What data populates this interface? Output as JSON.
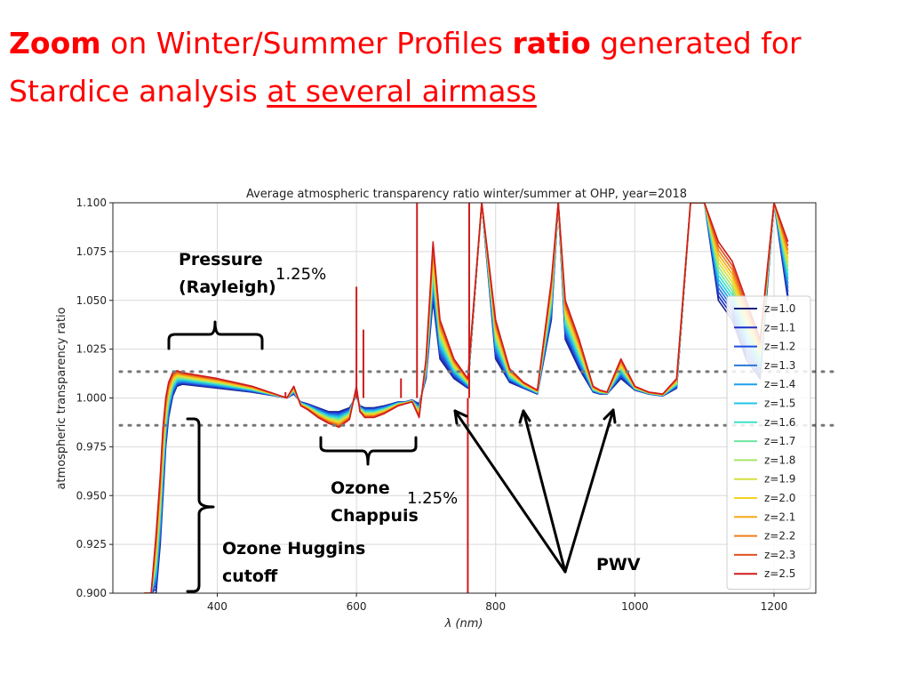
{
  "slide": {
    "title_part1": "Zoom",
    "title_part2": " on Winter/Summer Profiles ",
    "title_part3": "ratio",
    "title_part4": " generated for",
    "title_part5": "Stardice analysis ",
    "title_part6": "at several airmass"
  },
  "annotations": {
    "pressure_line1": "Pressure",
    "pressure_line2": "(Rayleigh)",
    "pct_top": "1.25%",
    "ozone_chappuis_line1": "Ozone",
    "ozone_chappuis_line2": "Chappuis",
    "pct_mid": "1.25%",
    "ozone_huggins_line1": "Ozone Huggins",
    "ozone_huggins_line2": "cutoff",
    "pwv": "PWV"
  },
  "chart_data": {
    "type": "line",
    "title": "Average atmospheric transparency ratio winter/summer at OHP, year=2018",
    "xlabel": "λ (nm)",
    "ylabel": "atmospheric transparency ratio",
    "xlim": [
      250,
      1260
    ],
    "ylim": [
      0.9,
      1.1
    ],
    "xticks": [
      400,
      600,
      800,
      1000,
      1200
    ],
    "yticks": [
      0.9,
      0.925,
      0.95,
      0.975,
      1.0,
      1.025,
      1.05,
      1.075,
      1.1
    ],
    "ytick_labels": [
      "0.900",
      "0.925",
      "0.950",
      "0.975",
      "1.000",
      "1.025",
      "1.050",
      "1.075",
      "1.100"
    ],
    "grid": true,
    "legend_position": "right",
    "reference_lines": [
      1.0135,
      0.986
    ],
    "series": [
      {
        "name": "z=1.0",
        "color": "#1a237e"
      },
      {
        "name": "z=1.1",
        "color": "#1c2fc9"
      },
      {
        "name": "z=1.2",
        "color": "#1f4fe0"
      },
      {
        "name": "z=1.3",
        "color": "#2a78d8"
      },
      {
        "name": "z=1.4",
        "color": "#1fa0e8"
      },
      {
        "name": "z=1.5",
        "color": "#22c4e6"
      },
      {
        "name": "z=1.6",
        "color": "#3ee0c8"
      },
      {
        "name": "z=1.7",
        "color": "#6fe6a0"
      },
      {
        "name": "z=1.8",
        "color": "#a8e46a"
      },
      {
        "name": "z=1.9",
        "color": "#d6e040"
      },
      {
        "name": "z=2.0",
        "color": "#f5d21e"
      },
      {
        "name": "z=2.1",
        "color": "#f5a81a"
      },
      {
        "name": "z=2.2",
        "color": "#f07d1a"
      },
      {
        "name": "z=2.3",
        "color": "#e05020"
      },
      {
        "name": "z=2.5",
        "color": "#d01c1c"
      }
    ],
    "profile_low_z": {
      "x": [
        295,
        305,
        312,
        318,
        322,
        326,
        330,
        336,
        342,
        350,
        400,
        450,
        500,
        510,
        520,
        530,
        545,
        560,
        575,
        590,
        600,
        605,
        612,
        625,
        640,
        650,
        660,
        670,
        680,
        690,
        700,
        710,
        720,
        740,
        760,
        780,
        800,
        820,
        840,
        860,
        880,
        890,
        900,
        920,
        940,
        950,
        960,
        980,
        1000,
        1020,
        1040,
        1060,
        1080,
        1100,
        1120,
        1140,
        1160,
        1180,
        1200,
        1220
      ],
      "y": [
        0.9,
        0.9,
        0.9,
        0.925,
        0.95,
        0.975,
        0.99,
        1.001,
        1.006,
        1.007,
        1.005,
        1.003,
        1.0,
        1.002,
        0.998,
        0.997,
        0.995,
        0.993,
        0.993,
        0.995,
        1.001,
        0.996,
        0.995,
        0.995,
        0.996,
        0.997,
        0.998,
        0.998,
        0.999,
        0.997,
        1.01,
        1.05,
        1.02,
        1.01,
        1.005,
        1.1,
        1.02,
        1.008,
        1.005,
        1.002,
        1.04,
        1.1,
        1.03,
        1.015,
        1.003,
        1.002,
        1.002,
        1.01,
        1.004,
        1.002,
        1.001,
        1.005,
        1.1,
        1.1,
        1.05,
        1.04,
        1.02,
        1.01,
        1.1,
        1.05
      ]
    },
    "profile_high_z": {
      "x": [
        295,
        305,
        312,
        318,
        322,
        326,
        330,
        336,
        342,
        350,
        400,
        450,
        500,
        510,
        520,
        530,
        545,
        560,
        575,
        590,
        600,
        605,
        612,
        625,
        640,
        650,
        660,
        670,
        680,
        690,
        700,
        710,
        720,
        740,
        760,
        780,
        800,
        820,
        840,
        860,
        880,
        890,
        900,
        920,
        940,
        950,
        960,
        980,
        1000,
        1020,
        1040,
        1060,
        1080,
        1100,
        1120,
        1140,
        1160,
        1180,
        1200,
        1220
      ],
      "y": [
        0.9,
        0.9,
        0.93,
        0.96,
        0.985,
        1.0,
        1.008,
        1.013,
        1.014,
        1.013,
        1.01,
        1.006,
        1.0,
        1.006,
        0.996,
        0.994,
        0.99,
        0.987,
        0.985,
        0.989,
        1.006,
        0.993,
        0.99,
        0.99,
        0.992,
        0.994,
        0.996,
        0.997,
        0.998,
        0.99,
        1.02,
        1.08,
        1.04,
        1.02,
        1.01,
        1.1,
        1.04,
        1.015,
        1.008,
        1.004,
        1.06,
        1.1,
        1.05,
        1.03,
        1.006,
        1.004,
        1.003,
        1.02,
        1.006,
        1.003,
        1.002,
        1.01,
        1.1,
        1.1,
        1.08,
        1.07,
        1.05,
        1.03,
        1.1,
        1.08
      ]
    },
    "spikes": [
      {
        "x": 498,
        "y": 1.003
      },
      {
        "x": 600,
        "y": 1.057
      },
      {
        "x": 610,
        "y": 1.035
      },
      {
        "x": 664,
        "y": 1.01
      },
      {
        "x": 687,
        "y": 1.1
      },
      {
        "x": 760,
        "y": 0.9
      },
      {
        "x": 762,
        "y": 1.1
      }
    ]
  }
}
